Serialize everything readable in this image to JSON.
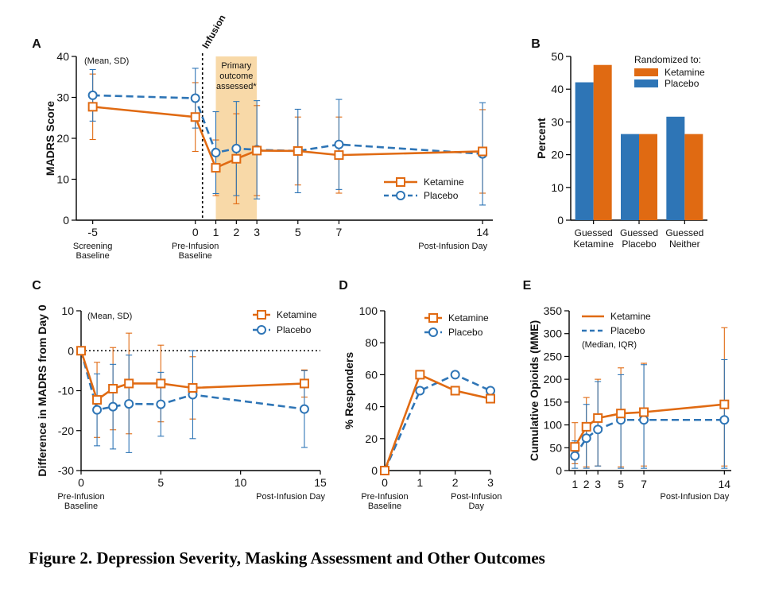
{
  "figure_caption": "Figure 2. Depression Severity, Masking Assessment and Other Outcomes",
  "colors": {
    "ketamine": "#E06A12",
    "placebo": "#2E75B6",
    "shade": "#F8D9A8"
  },
  "legend": {
    "ketamine": "Ketamine",
    "placebo": "Placebo"
  },
  "chart_data": [
    {
      "panel": "A",
      "type": "line",
      "ylabel": "MADRS Score",
      "note": "(Mean, SD)",
      "ylim": [
        0,
        40
      ],
      "yticks": [
        "0",
        "10",
        "20",
        "30",
        "40"
      ],
      "xlim": [
        -5.8,
        14.5
      ],
      "xticks": [
        {
          "x": -5,
          "label": "-5"
        },
        {
          "x": 0,
          "label": "0"
        },
        {
          "x": 1,
          "label": "1"
        },
        {
          "x": 2,
          "label": "2"
        },
        {
          "x": 3,
          "label": "3"
        },
        {
          "x": 5,
          "label": "5"
        },
        {
          "x": 7,
          "label": "7"
        },
        {
          "x": 14,
          "label": "14"
        }
      ],
      "xsublabels": [
        {
          "x": -5,
          "lines": [
            "Screening",
            "Baseline"
          ]
        },
        {
          "x": 0,
          "lines": [
            "Pre-Infusion",
            "Baseline"
          ]
        },
        {
          "x": 14,
          "lines": [
            "Post-Infusion Day"
          ]
        }
      ],
      "infusion_label": "Infusion",
      "infusion_x": 0.35,
      "shaded_region": {
        "x0": 1,
        "x1": 3,
        "lines": [
          "Primary",
          "outcome",
          "assessed*"
        ]
      },
      "legend_position": "bottom-right",
      "series": [
        {
          "name": "Ketamine",
          "x": [
            -5,
            0,
            1,
            2,
            3,
            5,
            7,
            14
          ],
          "y": [
            27.7,
            25.2,
            12.8,
            15.0,
            17.0,
            16.9,
            15.9,
            16.8
          ],
          "err": [
            8.0,
            8.4,
            6.8,
            11.0,
            11.0,
            8.3,
            9.3,
            10.2
          ]
        },
        {
          "name": "Placebo",
          "x": [
            -5,
            0,
            1,
            2,
            3,
            5,
            7,
            14
          ],
          "y": [
            30.5,
            29.8,
            16.5,
            17.5,
            17.2,
            16.9,
            18.5,
            16.2
          ],
          "err": [
            6.3,
            7.3,
            10.0,
            11.5,
            12.0,
            10.2,
            11.0,
            12.5
          ]
        }
      ]
    },
    {
      "panel": "B",
      "type": "bar",
      "ylabel": "Percent",
      "ylim": [
        0,
        50
      ],
      "yticks": [
        "0",
        "10",
        "20",
        "30",
        "40",
        "50"
      ],
      "categories": [
        [
          "Guessed",
          "Ketamine"
        ],
        [
          "Guessed",
          "Placebo"
        ],
        [
          "Guessed",
          "Neither"
        ]
      ],
      "legend_title": "Randomized to:",
      "legend_position": "top-right",
      "series": [
        {
          "name": "Placebo",
          "values": [
            42.1,
            26.3,
            31.6
          ]
        },
        {
          "name": "Ketamine",
          "values": [
            47.4,
            26.3,
            26.3
          ]
        }
      ]
    },
    {
      "panel": "C",
      "type": "line",
      "ylabel": "Difference in MADRS from Day 0",
      "note": "(Mean, SD)",
      "ylim": [
        -30,
        10
      ],
      "yticks": [
        "-30",
        "-20",
        "-10",
        "0",
        "10"
      ],
      "xlim": [
        0,
        15
      ],
      "xticks": [
        {
          "x": 0,
          "label": "0"
        },
        {
          "x": 5,
          "label": "5"
        },
        {
          "x": 10,
          "label": "10"
        },
        {
          "x": 15,
          "label": "15"
        }
      ],
      "xsublabels": [
        {
          "x": 0,
          "lines": [
            "Pre-Infusion",
            "Baseline"
          ]
        },
        {
          "x": 15,
          "lines": [
            "Post-Infusion Day"
          ]
        }
      ],
      "zero_line": true,
      "legend_position": "top-right",
      "series": [
        {
          "name": "Ketamine",
          "x": [
            0,
            1,
            2,
            3,
            5,
            7,
            14
          ],
          "y": [
            0,
            -12.3,
            -9.5,
            -8.2,
            -8.2,
            -9.3,
            -8.2
          ],
          "err": [
            0,
            9.4,
            10.3,
            12.6,
            9.6,
            7.8,
            3.4
          ]
        },
        {
          "name": "Placebo",
          "x": [
            0,
            1,
            2,
            3,
            5,
            7,
            14
          ],
          "y": [
            0,
            -14.8,
            -14.0,
            -13.3,
            -13.4,
            -11.0,
            -14.6
          ],
          "err": [
            0,
            9.0,
            10.6,
            12.2,
            8.0,
            11.0,
            9.6
          ]
        }
      ]
    },
    {
      "panel": "D",
      "type": "line",
      "ylabel": "% Responders",
      "ylim": [
        0,
        100
      ],
      "yticks": [
        "0",
        "20",
        "40",
        "60",
        "80",
        "100"
      ],
      "xlim": [
        0,
        3
      ],
      "xticks": [
        {
          "x": 0,
          "label": "0"
        },
        {
          "x": 1,
          "label": "1"
        },
        {
          "x": 2,
          "label": "2"
        },
        {
          "x": 3,
          "label": "3"
        }
      ],
      "xsublabels": [
        {
          "x": 0,
          "lines": [
            "Pre-Infusion",
            "Baseline"
          ]
        },
        {
          "x": 2.6,
          "lines": [
            "Post-Infusion",
            "Day"
          ]
        }
      ],
      "legend_position": "top-right",
      "series": [
        {
          "name": "Ketamine",
          "x": [
            0,
            1,
            2,
            3
          ],
          "y": [
            0,
            60,
            50,
            45
          ]
        },
        {
          "name": "Placebo",
          "x": [
            0,
            1,
            2,
            3
          ],
          "y": [
            0,
            50,
            60,
            50
          ]
        }
      ]
    },
    {
      "panel": "E",
      "type": "line",
      "ylabel": "Cumulative Opioids (MME)",
      "note": "(Median, IQR)",
      "ylim": [
        0,
        350
      ],
      "yticks": [
        "0",
        "50",
        "100",
        "150",
        "200",
        "250",
        "300",
        "350"
      ],
      "xlim": [
        0.5,
        14.6
      ],
      "xticks": [
        {
          "x": 1,
          "label": "1"
        },
        {
          "x": 2,
          "label": "2"
        },
        {
          "x": 3,
          "label": "3"
        },
        {
          "x": 5,
          "label": "5"
        },
        {
          "x": 7,
          "label": "7"
        },
        {
          "x": 14,
          "label": "14"
        }
      ],
      "xsublabels": [
        {
          "x": 14,
          "lines": [
            "Post-Infusion Day"
          ]
        }
      ],
      "legend_position": "top-right",
      "series": [
        {
          "name": "Ketamine",
          "x": [
            1,
            2,
            3,
            5,
            7,
            14
          ],
          "y": [
            52,
            96,
            115,
            125,
            128,
            145
          ],
          "lo": [
            15,
            8,
            10,
            8,
            10,
            10
          ],
          "hi": [
            105,
            160,
            200,
            225,
            235,
            313
          ]
        },
        {
          "name": "Placebo",
          "x": [
            1,
            2,
            3,
            5,
            7,
            14
          ],
          "y": [
            32,
            71,
            90,
            111,
            111,
            111
          ],
          "lo": [
            5,
            5,
            10,
            5,
            5,
            5
          ],
          "hi": [
            65,
            145,
            195,
            210,
            232,
            243
          ]
        }
      ]
    }
  ]
}
